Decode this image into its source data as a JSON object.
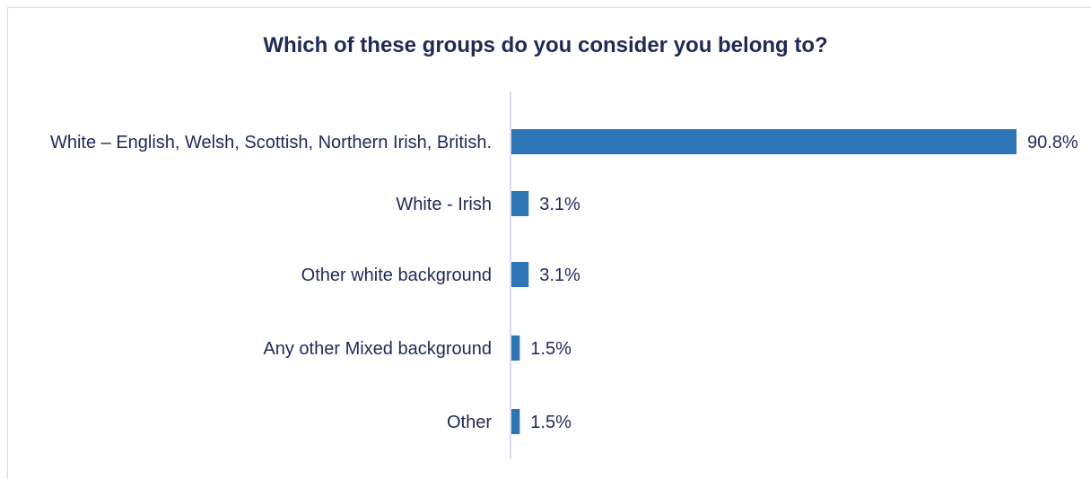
{
  "chart_data": {
    "type": "bar",
    "orientation": "horizontal",
    "title": "Which of these groups do you consider you belong to?",
    "categories": [
      "White – English, Welsh, Scottish, Northern Irish, British.",
      "White - Irish",
      "Other white background",
      "Any other Mixed background",
      "Other"
    ],
    "values": [
      90.8,
      3.1,
      3.1,
      1.5,
      1.5
    ],
    "value_labels": [
      "90.8%",
      "3.1%",
      "3.1%",
      "1.5%",
      "1.5%"
    ],
    "xlabel": "",
    "ylabel": "",
    "xlim": [
      0,
      100
    ],
    "grid": false,
    "legend": "none",
    "bar_color": "#2e75b6",
    "axis_color": "#d0cfe8",
    "text_color": "#1f2a57"
  }
}
